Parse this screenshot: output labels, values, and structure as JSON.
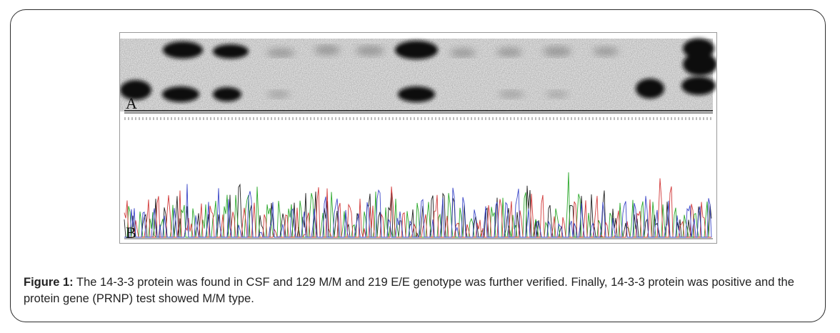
{
  "figure": {
    "panel_a_label": "A",
    "panel_b_label": "B"
  },
  "caption": {
    "label": "Figure 1:",
    "text": "The 14-3-3 protein was found in CSF and 129 M/M and 219 E/E genotype was further verified. Finally, 14-3-3 protein was positive and the protein gene (PRNP) test showed M/M type."
  }
}
